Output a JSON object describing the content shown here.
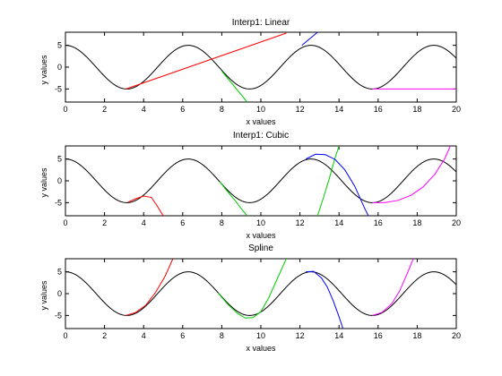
{
  "colors": {
    "reference": "#000000",
    "series1": "#ff0000",
    "series2": "#00cc00",
    "series3": "#0000ff",
    "series4": "#ff00ff"
  },
  "chart_data": [
    {
      "type": "line",
      "title": "Interp1: Linear",
      "xlabel": "x values",
      "ylabel": "y values",
      "xlim": [
        0,
        20
      ],
      "ylim": [
        -8,
        8
      ],
      "xticks": [
        0,
        2,
        4,
        6,
        8,
        10,
        12,
        14,
        16,
        18,
        20
      ],
      "yticks": [
        5,
        0,
        -5
      ],
      "grid": false,
      "reference_curve": {
        "function": "5*cos(x)",
        "x_start": 0,
        "x_end": 20
      },
      "series": [
        {
          "color": "#ff0000",
          "x": [
            3.1,
            11.3
          ],
          "y": [
            -5.0,
            7.8
          ]
        },
        {
          "color": "#00cc00",
          "x": [
            8.0,
            9.3
          ],
          "y": [
            -0.9,
            -8.0
          ]
        },
        {
          "color": "#0000ff",
          "x": [
            12.1,
            12.9
          ],
          "y": [
            5.0,
            8.0
          ]
        },
        {
          "color": "#ff00ff",
          "x": [
            15.7,
            20.0
          ],
          "y": [
            -5.0,
            -5.0
          ]
        }
      ]
    },
    {
      "type": "line",
      "title": "Interp1: Cubic",
      "xlabel": "x values",
      "ylabel": "y values",
      "xlim": [
        0,
        20
      ],
      "ylim": [
        -8,
        8
      ],
      "xticks": [
        0,
        2,
        4,
        6,
        8,
        10,
        12,
        14,
        16,
        18,
        20
      ],
      "yticks": [
        5,
        0,
        -5
      ],
      "grid": false,
      "reference_curve": {
        "function": "5*cos(x)",
        "x_start": 0,
        "x_end": 20
      },
      "series": [
        {
          "color": "#ff0000",
          "x": [
            3.2,
            3.6,
            4.0,
            4.4,
            4.7,
            5.0
          ],
          "y": [
            -4.9,
            -4.1,
            -3.5,
            -3.8,
            -5.8,
            -8.0
          ]
        },
        {
          "color": "#00cc00",
          "x": [
            7.9,
            8.3,
            8.7,
            9.0,
            9.3
          ],
          "y": [
            -0.2,
            -2.5,
            -4.6,
            -6.4,
            -8.0
          ]
        },
        {
          "color": "#00cc00",
          "x": [
            12.9,
            13.2,
            13.5,
            13.8,
            14.0
          ],
          "y": [
            -8.0,
            -3.9,
            0.5,
            5.3,
            8.0
          ]
        },
        {
          "color": "#0000ff",
          "x": [
            12.3,
            12.8,
            13.3,
            13.8,
            14.3,
            14.8,
            15.3,
            15.5
          ],
          "y": [
            5.0,
            6.1,
            6.0,
            4.9,
            2.5,
            -1.2,
            -6.2,
            -8.0
          ]
        },
        {
          "color": "#ff00ff",
          "x": [
            15.7,
            16.3,
            17.0,
            17.7,
            18.3,
            18.9,
            19.4,
            19.7
          ],
          "y": [
            -5.0,
            -5.0,
            -4.5,
            -3.3,
            -1.4,
            1.5,
            5.0,
            8.0
          ]
        }
      ]
    },
    {
      "type": "line",
      "title": "Spline",
      "xlabel": "x values",
      "ylabel": "y values",
      "xlim": [
        0,
        20
      ],
      "ylim": [
        -8,
        8
      ],
      "xticks": [
        0,
        2,
        4,
        6,
        8,
        10,
        12,
        14,
        16,
        18,
        20
      ],
      "yticks": [
        5,
        0,
        -5
      ],
      "grid": false,
      "reference_curve": {
        "function": "5*cos(x)",
        "x_start": 0,
        "x_end": 20
      },
      "series": [
        {
          "color": "#ff0000",
          "x": [
            3.1,
            3.6,
            4.1,
            4.6,
            5.1,
            5.5
          ],
          "y": [
            -5.0,
            -4.3,
            -2.7,
            0.2,
            4.0,
            8.0
          ]
        },
        {
          "color": "#00cc00",
          "x": [
            7.8,
            8.3,
            8.8,
            9.2,
            9.6,
            10.0,
            10.4,
            10.8,
            11.3
          ],
          "y": [
            0.2,
            -2.4,
            -4.5,
            -5.6,
            -5.5,
            -4.1,
            -1.0,
            3.0,
            8.0
          ]
        },
        {
          "color": "#0000ff",
          "x": [
            12.3,
            12.7,
            13.1,
            13.4,
            13.7,
            14.0,
            14.2
          ],
          "y": [
            5.0,
            5.1,
            3.6,
            1.5,
            -1.6,
            -5.3,
            -8.0
          ]
        },
        {
          "color": "#ff00ff",
          "x": [
            15.7,
            16.2,
            16.7,
            17.1,
            17.5,
            17.8
          ],
          "y": [
            -5.0,
            -4.3,
            -2.3,
            0.6,
            4.7,
            8.0
          ]
        }
      ]
    }
  ]
}
